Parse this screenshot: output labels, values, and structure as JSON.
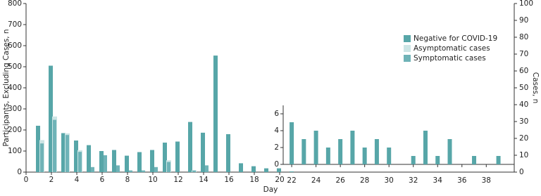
{
  "chart_data": [
    {
      "type": "bar",
      "x_label": "Day",
      "y_label": "Participants, Excluding Cases, n",
      "y2_label": "Cases, n",
      "x": [
        1,
        2,
        3,
        4,
        5,
        6,
        7,
        8,
        9,
        10,
        11,
        12,
        13,
        14,
        15,
        16,
        17,
        18,
        19,
        20,
        21
      ],
      "xlim": [
        0,
        38.5
      ],
      "xticks": [
        0,
        2,
        4,
        6,
        8,
        10,
        12,
        14,
        16,
        18,
        20
      ],
      "ylim": [
        0,
        800
      ],
      "yticks": [
        0,
        100,
        200,
        300,
        400,
        500,
        600,
        700,
        800
      ],
      "y2lim": [
        0,
        100
      ],
      "y2ticks": [
        0,
        10,
        20,
        30,
        40,
        50,
        60,
        70,
        80,
        90,
        100
      ],
      "legend": "upper right",
      "series": [
        {
          "name": "Negative for COVID-19",
          "color": "#57a6a8",
          "values": [
            220,
            505,
            185,
            150,
            128,
            100,
            105,
            78,
            95,
            105,
            140,
            145,
            238,
            187,
            553,
            180,
            42,
            28,
            18,
            18,
            10
          ]
        },
        {
          "name": "Asymptomatic cases",
          "color": "#cce5e5",
          "axis": "y2",
          "values": [
            19,
            33,
            23,
            13,
            0,
            0,
            0,
            0,
            0,
            0,
            7,
            0,
            1,
            0,
            0,
            0,
            0,
            0,
            0,
            0,
            0
          ]
        },
        {
          "name": "Symptomatic cases",
          "color": "#6fb3b7",
          "axis": "y2",
          "values": [
            17,
            31,
            22,
            12,
            3,
            10,
            4,
            1,
            1,
            3,
            6,
            0,
            1,
            4,
            0,
            0,
            0,
            0,
            0,
            0,
            0
          ]
        }
      ]
    },
    {
      "type": "bar",
      "x": [
        22,
        23,
        24,
        25,
        26,
        27,
        28,
        29,
        30,
        31,
        32,
        33,
        34,
        35,
        36,
        37,
        38,
        39
      ],
      "xlim": [
        21.3,
        40.3
      ],
      "xticks": [
        22,
        24,
        26,
        28,
        30,
        32,
        34,
        36,
        38
      ],
      "ylim": [
        0,
        7
      ],
      "yticks": [
        0,
        2,
        4,
        6
      ],
      "color": "#57a6a8",
      "values": [
        5,
        3,
        4,
        2,
        3,
        4,
        2,
        3,
        2,
        0,
        1,
        4,
        1,
        3,
        0,
        1,
        0,
        1
      ]
    }
  ]
}
